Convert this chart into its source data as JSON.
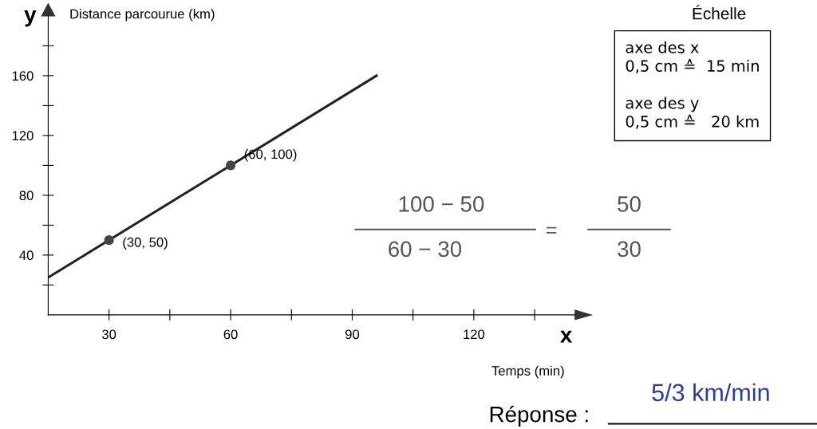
{
  "chart_data": {
    "type": "line",
    "xlabel": "Temps (min)",
    "ylabel": "Distance parcourue (km)",
    "xlim": [
      15,
      145
    ],
    "ylim": [
      0,
      200
    ],
    "xticks": [
      30,
      {
        "value": 45,
        "label": null
      },
      60,
      {
        "value": 75,
        "label": null
      },
      90,
      {
        "value": 105,
        "label": null
      },
      120,
      {
        "value": 135,
        "label": null
      }
    ],
    "yticks": [
      {
        "value": 20,
        "label": null
      },
      40,
      {
        "value": 60,
        "label": null
      },
      80,
      {
        "value": 100,
        "label": null
      },
      120,
      {
        "value": 140,
        "label": null
      },
      160,
      {
        "value": 180,
        "label": null
      }
    ],
    "grid": false,
    "series": [
      {
        "color": "#222222",
        "x": [
          15,
          96
        ],
        "values": [
          25,
          160
        ],
        "marker": "none"
      },
      {
        "type": "scatter",
        "color": "#444444",
        "x": [
          30,
          60
        ],
        "values": [
          50,
          100
        ],
        "marker": "circle"
      }
    ],
    "annotations": [
      {
        "text": "(30, 50)",
        "x": 30,
        "y": 50
      },
      {
        "text": "(60, 100)",
        "x": 60,
        "y": 100
      },
      "x",
      "y",
      "Échelle",
      "axe des x\n0,5 cm ≙  15 min\n\naxe des y\n0,5 cm ≙   20 km",
      "100 − 50",
      "60 − 30",
      "=",
      "50",
      "30",
      "Réponse :",
      "5/3 km/min"
    ]
  }
}
